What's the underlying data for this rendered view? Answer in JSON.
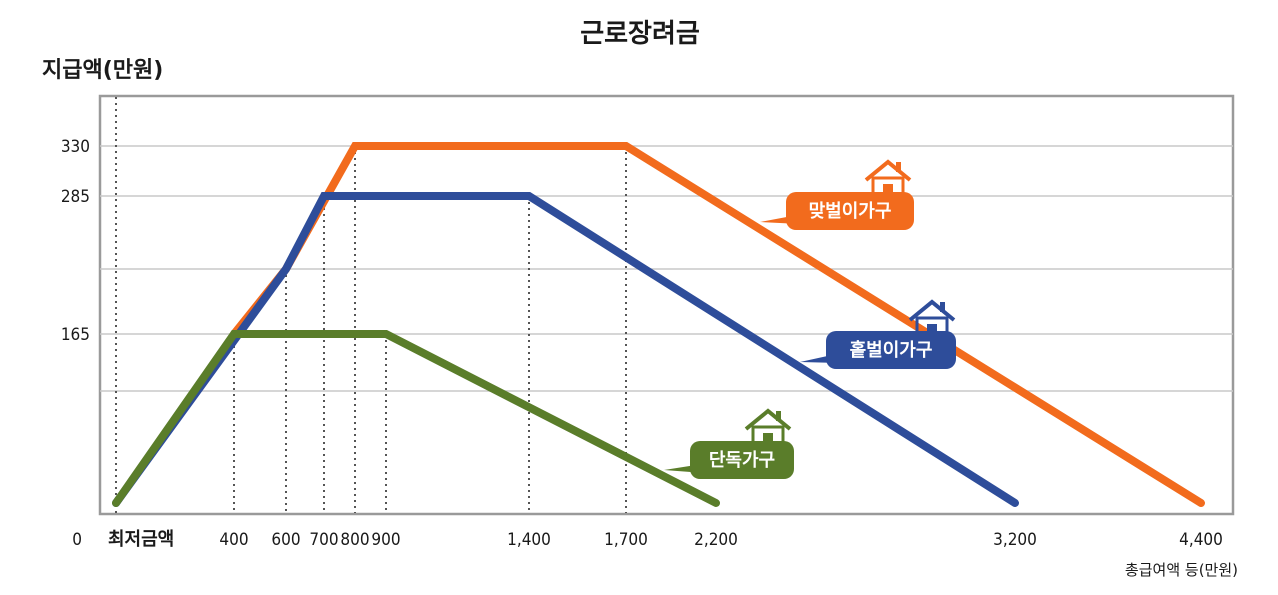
{
  "chart_data": {
    "type": "line",
    "title": "근로장려금",
    "ylabel": "지급액(만원)",
    "xlabel": "총급여액 등(만원)",
    "y_ticks": [
      "0",
      "165",
      "285",
      "330"
    ],
    "y_tick_values": [
      0,
      165,
      285,
      330
    ],
    "y_grid_values": [
      145,
      225
    ],
    "ylim": [
      0,
      350
    ],
    "x_ticks": [
      "400",
      "600",
      "700",
      "800",
      "900",
      "1,400",
      "1,700",
      "2,200",
      "3,200",
      "4,400"
    ],
    "x_tick_values": [
      400,
      600,
      700,
      800,
      900,
      1400,
      1700,
      2200,
      3200,
      4400
    ],
    "x_min_label": "최저금액",
    "grid": true,
    "series": [
      {
        "name": "맞벌이가구",
        "color": "#f26b1d",
        "x": [
          400,
          600,
          800,
          1700,
          4400
        ],
        "y": [
          165,
          225,
          330,
          330,
          0
        ]
      },
      {
        "name": "홑벌이가구",
        "color": "#2e4d9a",
        "x": [
          0,
          600,
          700,
          1400,
          3200
        ],
        "y": [
          0,
          225,
          285,
          285,
          0
        ]
      },
      {
        "name": "단독가구",
        "color": "#5a7d2a",
        "x": [
          0,
          400,
          900,
          2200
        ],
        "y": [
          0,
          165,
          165,
          0
        ]
      }
    ]
  },
  "colors": {
    "grid": "#c8c8c8",
    "frame": "#9a9a9a",
    "dotted": "#555555"
  },
  "icons": [
    "house-icon"
  ]
}
